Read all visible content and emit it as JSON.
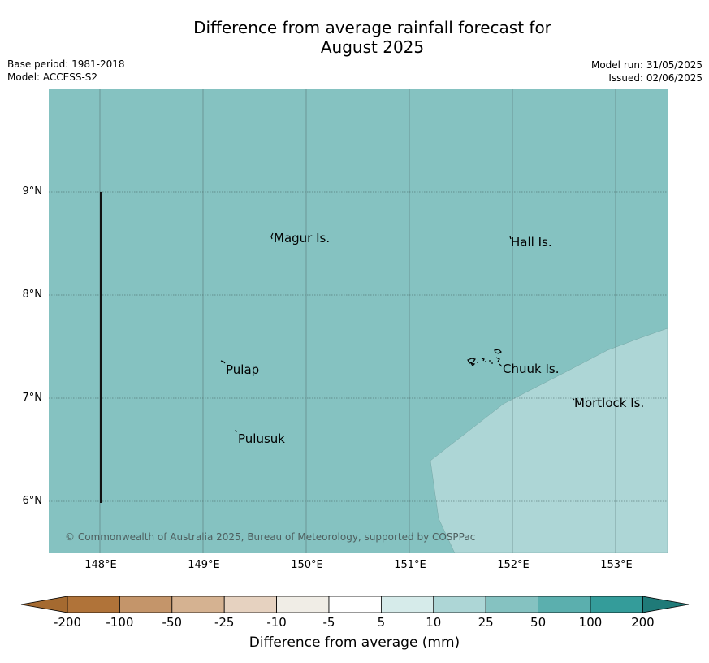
{
  "title_line1": "Difference from average rainfall forecast for",
  "title_line2": "August 2025",
  "meta_left": {
    "base_period": "Base period: 1981-2018",
    "model": "Model: ACCESS-S2"
  },
  "meta_right": {
    "model_run": "Model run: 31/05/2025",
    "issued": "Issued: 02/06/2025"
  },
  "map": {
    "lat_labels": [
      "9°N",
      "8°N",
      "7°N",
      "6°N"
    ],
    "lon_labels": [
      "148°E",
      "149°E",
      "150°E",
      "151°E",
      "152°E",
      "153°E"
    ],
    "places": [
      "Magur Is.",
      "Hall Is.",
      "Pulap",
      "Chuuk Is.",
      "Mortlock Is.",
      "Pulusuk"
    ],
    "copyright": "© Commonwealth of Australia 2025, Bureau of Meteorology, supported by COSPPac",
    "base_fill_color": "#85c2c1",
    "light_fill_color": "#add6d6"
  },
  "colorbar": {
    "title": "Difference from average (mm)",
    "ticks": [
      "-200",
      "-100",
      "-50",
      "-25",
      "-10",
      "-5",
      "5",
      "10",
      "25",
      "50",
      "100",
      "200"
    ],
    "colors": [
      "#a56a30",
      "#b07339",
      "#c4956a",
      "#d5b291",
      "#e6d2c0",
      "#f0ede6",
      "#ffffff",
      "#d6ebea",
      "#add6d6",
      "#85c2c1",
      "#5bafae",
      "#349c9a",
      "#1f7a78"
    ]
  }
}
